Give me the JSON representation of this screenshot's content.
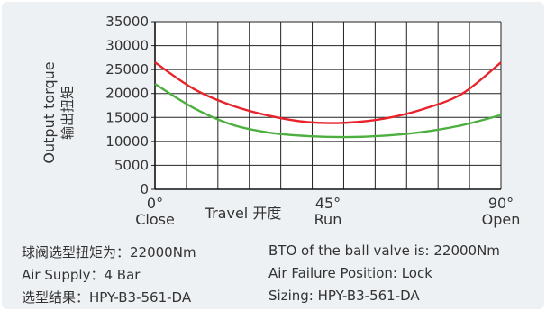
{
  "chart_data": {
    "type": "line",
    "y_ticks": [
      "35000",
      "30000",
      "25000",
      "20000",
      "15000",
      "10000",
      "5000",
      "0"
    ],
    "ylim": [
      0,
      35000
    ],
    "xlim": [
      0,
      90
    ],
    "ylabel_en": "Output torque",
    "ylabel_cn": "输出扭矩",
    "x_ticks": [
      {
        "x": 0,
        "value": "0°",
        "label": "Close"
      },
      {
        "x": 45,
        "value": "45°",
        "label": "Run"
      },
      {
        "x": 90,
        "value": "90°",
        "label": "Open"
      }
    ],
    "xlabel": "Travel 开度",
    "grid": true,
    "series": [
      {
        "color": "#e8232a",
        "x": [
          0,
          10,
          20,
          30,
          40,
          50,
          60,
          70,
          80,
          90
        ],
        "values": [
          26500,
          21000,
          17500,
          15300,
          14000,
          13900,
          14800,
          16800,
          20000,
          26500
        ]
      },
      {
        "color": "#4daf3f",
        "x": [
          0,
          10,
          20,
          30,
          40,
          50,
          60,
          70,
          80,
          90
        ],
        "values": [
          22000,
          17000,
          13500,
          11800,
          11100,
          10900,
          11200,
          12000,
          13400,
          15500
        ]
      }
    ]
  },
  "info": {
    "left_1": "球阀选型扭矩为：22000Nm",
    "left_2": "Air Supply：4 Bar",
    "left_3": "选型结果：HPY-B3-561-DA",
    "right_1": "BTO of the ball valve is: 22000Nm",
    "right_2": "Air Failure Position: Lock",
    "right_3": "Sizing: HPY-B3-561-DA"
  }
}
